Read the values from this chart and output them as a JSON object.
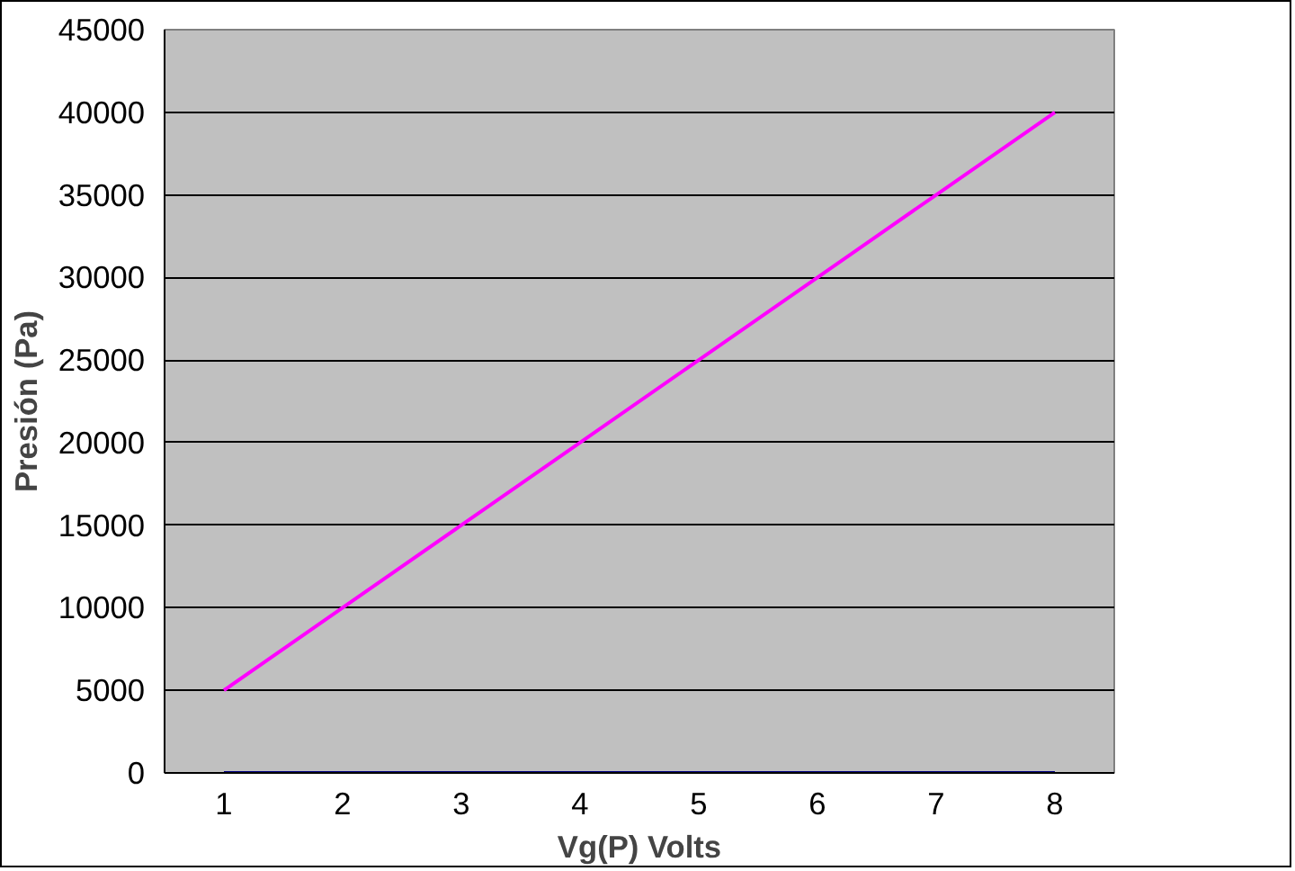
{
  "chart_data": {
    "type": "line",
    "xlabel": "Vg(P) Volts",
    "ylabel": "Presión (Pa)",
    "categories": [
      "1",
      "2",
      "3",
      "4",
      "5",
      "6",
      "7",
      "8"
    ],
    "series": [
      {
        "color": "#ff00ff",
        "values": [
          5000,
          10000,
          15000,
          20000,
          25000,
          30000,
          35000,
          40000
        ]
      },
      {
        "color": "#000080",
        "values": [
          0,
          0,
          0,
          0,
          0,
          0,
          0,
          0
        ]
      }
    ],
    "ylim": [
      0,
      45000
    ],
    "yticks": [
      0,
      5000,
      10000,
      15000,
      20000,
      25000,
      30000,
      35000,
      40000,
      45000
    ],
    "grid": "y",
    "marker": "none",
    "line_style": "solid"
  }
}
